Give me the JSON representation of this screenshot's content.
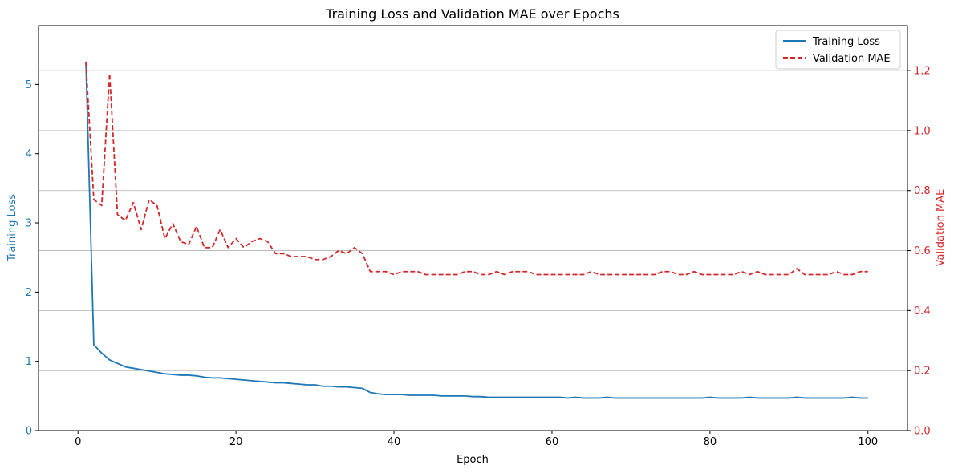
{
  "chart_data": {
    "type": "line",
    "title": "Training Loss and Validation MAE over Epochs",
    "xlabel": "Epoch",
    "xlim": [
      -5,
      105
    ],
    "xticks": [
      0,
      20,
      40,
      60,
      80,
      100
    ],
    "left_axis": {
      "label": "Training Loss",
      "color": "#1f77b4",
      "ylim": [
        0,
        5.85
      ],
      "ticks": [
        0,
        1,
        2,
        3,
        4,
        5
      ]
    },
    "right_axis": {
      "label": "Validation MAE",
      "color": "#d62728",
      "ylim": [
        0,
        1.35
      ],
      "ticks": [
        0.0,
        0.2,
        0.4,
        0.6,
        0.8,
        1.0,
        1.2
      ]
    },
    "grid": "horizontal lines at right-axis ticks",
    "legend_placement": "top-right",
    "series": [
      {
        "name": "Training Loss",
        "axis": "left",
        "color": "#1f77b4",
        "style": "solid",
        "x_start": 1,
        "values": [
          5.33,
          1.24,
          1.12,
          1.02,
          0.97,
          0.92,
          0.9,
          0.88,
          0.86,
          0.84,
          0.82,
          0.81,
          0.8,
          0.8,
          0.79,
          0.77,
          0.76,
          0.76,
          0.75,
          0.74,
          0.73,
          0.72,
          0.71,
          0.7,
          0.69,
          0.69,
          0.68,
          0.67,
          0.66,
          0.66,
          0.64,
          0.64,
          0.63,
          0.63,
          0.62,
          0.61,
          0.55,
          0.53,
          0.52,
          0.52,
          0.52,
          0.51,
          0.51,
          0.51,
          0.51,
          0.5,
          0.5,
          0.5,
          0.5,
          0.49,
          0.49,
          0.48,
          0.48,
          0.48,
          0.48,
          0.48,
          0.48,
          0.48,
          0.48,
          0.48,
          0.48,
          0.47,
          0.48,
          0.47,
          0.47,
          0.47,
          0.48,
          0.47,
          0.47,
          0.47,
          0.47,
          0.47,
          0.47,
          0.47,
          0.47,
          0.47,
          0.47,
          0.47,
          0.47,
          0.48,
          0.47,
          0.47,
          0.47,
          0.47,
          0.48,
          0.47,
          0.47,
          0.47,
          0.47,
          0.47,
          0.48,
          0.47,
          0.47,
          0.47,
          0.47,
          0.47,
          0.47,
          0.48,
          0.47,
          0.47
        ]
      },
      {
        "name": "Validation MAE",
        "axis": "right",
        "color": "#d62728",
        "style": "dashed",
        "x_start": 1,
        "values": [
          1.23,
          0.77,
          0.75,
          1.19,
          0.72,
          0.7,
          0.76,
          0.67,
          0.77,
          0.75,
          0.64,
          0.69,
          0.63,
          0.62,
          0.68,
          0.61,
          0.61,
          0.67,
          0.61,
          0.64,
          0.61,
          0.63,
          0.64,
          0.63,
          0.59,
          0.59,
          0.58,
          0.58,
          0.58,
          0.57,
          0.57,
          0.58,
          0.6,
          0.59,
          0.61,
          0.59,
          0.53,
          0.53,
          0.53,
          0.52,
          0.53,
          0.53,
          0.53,
          0.52,
          0.52,
          0.52,
          0.52,
          0.52,
          0.53,
          0.53,
          0.52,
          0.52,
          0.53,
          0.52,
          0.53,
          0.53,
          0.53,
          0.52,
          0.52,
          0.52,
          0.52,
          0.52,
          0.52,
          0.52,
          0.53,
          0.52,
          0.52,
          0.52,
          0.52,
          0.52,
          0.52,
          0.52,
          0.52,
          0.53,
          0.53,
          0.52,
          0.52,
          0.53,
          0.52,
          0.52,
          0.52,
          0.52,
          0.52,
          0.53,
          0.52,
          0.53,
          0.52,
          0.52,
          0.52,
          0.52,
          0.54,
          0.52,
          0.52,
          0.52,
          0.52,
          0.53,
          0.52,
          0.52,
          0.53,
          0.53
        ]
      }
    ]
  }
}
